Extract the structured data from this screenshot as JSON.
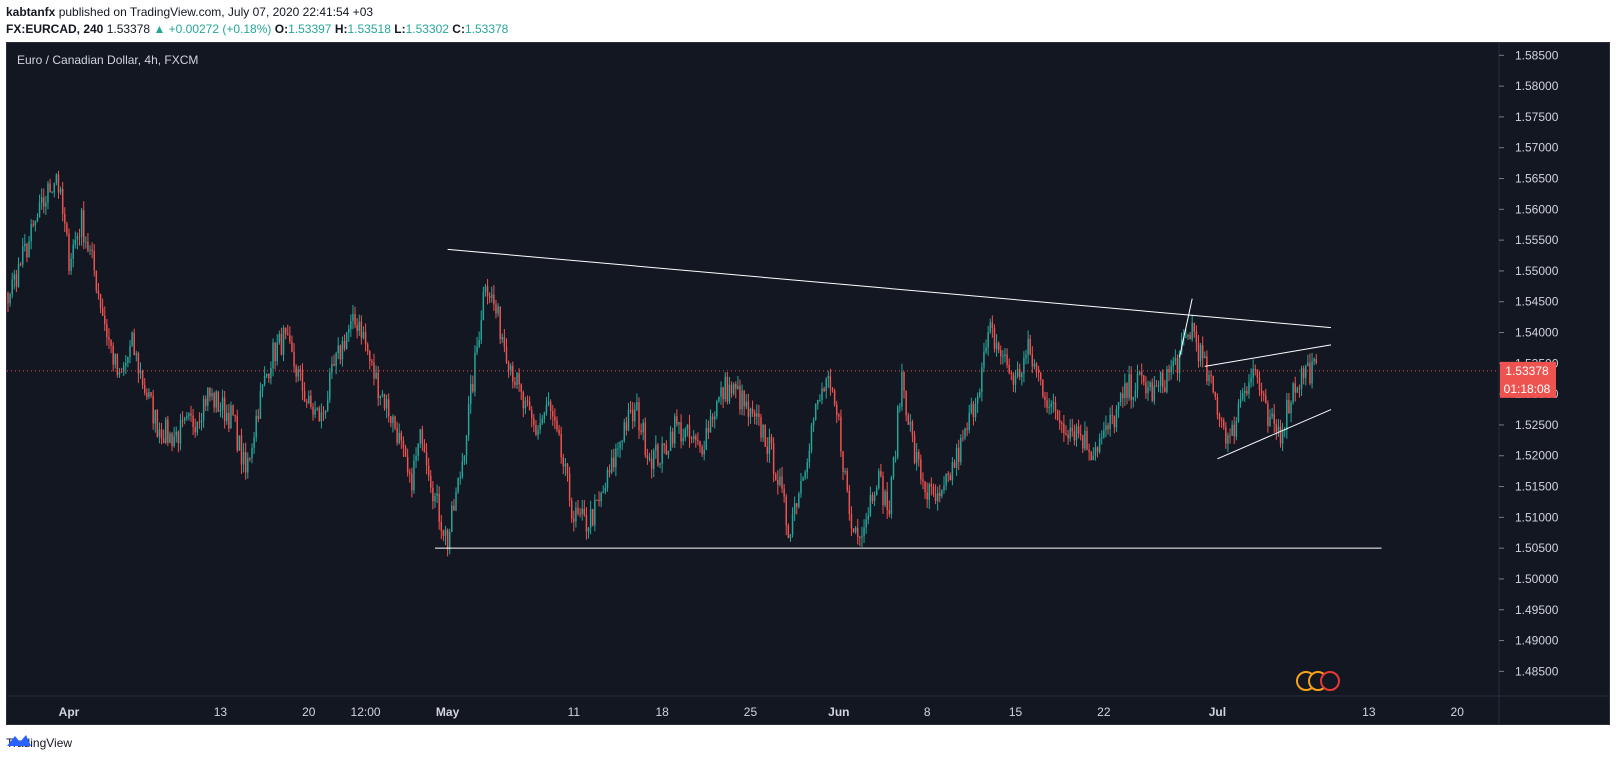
{
  "header": {
    "publisher": "kabtanfx",
    "published_text": "published on TradingView.com, July 07, 2020 22:41:54 +03",
    "symbol": "FX:EURCAD, 240",
    "last": "1.53378",
    "change": "▲ +0.00272 (+0.18%)",
    "o_label": "O:",
    "o_value": "1.53397",
    "h_label": "H:",
    "h_value": "1.53518",
    "l_label": "L:",
    "l_value": "1.53302",
    "c_label": "C:",
    "c_value": "1.53378"
  },
  "chart_title": "Euro / Canadian Dollar, 4h, FXCM",
  "footer": {
    "brand": "TradingView"
  },
  "colors": {
    "up": "#26a69a",
    "down": "#ef5350",
    "bg": "#131722",
    "grid": "#1e222d",
    "text": "#d1d4dc",
    "line": "#ffffff",
    "price_tag": "#ef5350"
  },
  "price_tag": {
    "price": "1.53378",
    "countdown": "01:18:08"
  },
  "chart_data": {
    "type": "candlestick",
    "title": "Euro / Canadian Dollar, 4h, FXCM",
    "timeframe": "4h",
    "ylim": [
      1.481,
      1.587
    ],
    "y_ticks": [
      "1.58500",
      "1.58000",
      "1.57500",
      "1.57000",
      "1.56500",
      "1.56000",
      "1.55500",
      "1.55000",
      "1.54500",
      "1.54000",
      "1.53500",
      "1.53000",
      "1.52500",
      "1.52000",
      "1.51500",
      "1.51000",
      "1.50500",
      "1.50000",
      "1.49500",
      "1.49000",
      "1.48500"
    ],
    "x_ticks": [
      {
        "label": "Apr",
        "date": "2020-04-01",
        "bold": true
      },
      {
        "label": "13",
        "date": "2020-04-13"
      },
      {
        "label": "20",
        "date": "2020-04-20"
      },
      {
        "label": "12:00",
        "date": "2020-04-24T12:00"
      },
      {
        "label": "May",
        "date": "2020-05-01",
        "bold": true
      },
      {
        "label": "11",
        "date": "2020-05-11"
      },
      {
        "label": "18",
        "date": "2020-05-18"
      },
      {
        "label": "25",
        "date": "2020-05-25"
      },
      {
        "label": "Jun",
        "date": "2020-06-01",
        "bold": true
      },
      {
        "label": "8",
        "date": "2020-06-08"
      },
      {
        "label": "15",
        "date": "2020-06-15"
      },
      {
        "label": "22",
        "date": "2020-06-22"
      },
      {
        "label": "Jul",
        "date": "2020-07-01",
        "bold": true
      },
      {
        "label": "13",
        "date": "2020-07-13"
      },
      {
        "label": "20",
        "date": "2020-07-20"
      }
    ],
    "close_path": [
      [
        "2020-03-25",
        1.536
      ],
      [
        "2020-03-27",
        1.545
      ],
      [
        "2020-03-30",
        1.561
      ],
      [
        "2020-03-31",
        1.566
      ],
      [
        "2020-04-01",
        1.552
      ],
      [
        "2020-04-02",
        1.558
      ],
      [
        "2020-04-03",
        1.55
      ],
      [
        "2020-04-04",
        1.54
      ],
      [
        "2020-04-05",
        1.532
      ],
      [
        "2020-04-06",
        1.538
      ],
      [
        "2020-04-07",
        1.531
      ],
      [
        "2020-04-08",
        1.525
      ],
      [
        "2020-04-09",
        1.523
      ],
      [
        "2020-04-10",
        1.524
      ],
      [
        "2020-04-11",
        1.526
      ],
      [
        "2020-04-12",
        1.53
      ],
      [
        "2020-04-13",
        1.528
      ],
      [
        "2020-04-14",
        1.526
      ],
      [
        "2020-04-15",
        1.517
      ],
      [
        "2020-04-16",
        1.528
      ],
      [
        "2020-04-17",
        1.536
      ],
      [
        "2020-04-18",
        1.539
      ],
      [
        "2020-04-19",
        1.534
      ],
      [
        "2020-04-20",
        1.528
      ],
      [
        "2020-04-21",
        1.526
      ],
      [
        "2020-04-22",
        1.534
      ],
      [
        "2020-04-23",
        1.54
      ],
      [
        "2020-04-24",
        1.542
      ],
      [
        "2020-04-25",
        1.534
      ],
      [
        "2020-04-26",
        1.529
      ],
      [
        "2020-04-27",
        1.524
      ],
      [
        "2020-04-28",
        1.515
      ],
      [
        "2020-04-29",
        1.524
      ],
      [
        "2020-04-30",
        1.513
      ],
      [
        "2020-05-01",
        1.506
      ],
      [
        "2020-05-02",
        1.517
      ],
      [
        "2020-05-03",
        1.532
      ],
      [
        "2020-05-04",
        1.549
      ],
      [
        "2020-05-05",
        1.542
      ],
      [
        "2020-05-06",
        1.535
      ],
      [
        "2020-05-07",
        1.528
      ],
      [
        "2020-05-08",
        1.524
      ],
      [
        "2020-05-09",
        1.528
      ],
      [
        "2020-05-10",
        1.52
      ],
      [
        "2020-05-11",
        1.51
      ],
      [
        "2020-05-12",
        1.509
      ],
      [
        "2020-05-13",
        1.512
      ],
      [
        "2020-05-14",
        1.518
      ],
      [
        "2020-05-15",
        1.525
      ],
      [
        "2020-05-16",
        1.527
      ],
      [
        "2020-05-17",
        1.52
      ],
      [
        "2020-05-18",
        1.52
      ],
      [
        "2020-05-19",
        1.525
      ],
      [
        "2020-05-20",
        1.523
      ],
      [
        "2020-05-21",
        1.521
      ],
      [
        "2020-05-22",
        1.527
      ],
      [
        "2020-05-23",
        1.531
      ],
      [
        "2020-05-24",
        1.53
      ],
      [
        "2020-05-25",
        1.526
      ],
      [
        "2020-05-26",
        1.524
      ],
      [
        "2020-05-27",
        1.518
      ],
      [
        "2020-05-28",
        1.508
      ],
      [
        "2020-05-29",
        1.516
      ],
      [
        "2020-05-30",
        1.526
      ],
      [
        "2020-05-31",
        1.532
      ],
      [
        "2020-06-01",
        1.525
      ],
      [
        "2020-06-02",
        1.508
      ],
      [
        "2020-06-03",
        1.509
      ],
      [
        "2020-06-04",
        1.517
      ],
      [
        "2020-06-05",
        1.511
      ],
      [
        "2020-06-06",
        1.533
      ],
      [
        "2020-06-07",
        1.52
      ],
      [
        "2020-06-08",
        1.514
      ],
      [
        "2020-06-09",
        1.512
      ],
      [
        "2020-06-10",
        1.518
      ],
      [
        "2020-06-11",
        1.523
      ],
      [
        "2020-06-12",
        1.531
      ],
      [
        "2020-06-13",
        1.54
      ],
      [
        "2020-06-14",
        1.536
      ],
      [
        "2020-06-15",
        1.532
      ],
      [
        "2020-06-16",
        1.537
      ],
      [
        "2020-06-17",
        1.532
      ],
      [
        "2020-06-18",
        1.527
      ],
      [
        "2020-06-19",
        1.525
      ],
      [
        "2020-06-20",
        1.524
      ],
      [
        "2020-06-21",
        1.521
      ],
      [
        "2020-06-22",
        1.523
      ],
      [
        "2020-06-23",
        1.527
      ],
      [
        "2020-06-24",
        1.531
      ],
      [
        "2020-06-25",
        1.532
      ],
      [
        "2020-06-26",
        1.53
      ],
      [
        "2020-06-27",
        1.533
      ],
      [
        "2020-06-28",
        1.536
      ],
      [
        "2020-06-29",
        1.541
      ],
      [
        "2020-06-30",
        1.534
      ],
      [
        "2020-07-01",
        1.528
      ],
      [
        "2020-07-02",
        1.522
      ],
      [
        "2020-07-03",
        1.531
      ],
      [
        "2020-07-04",
        1.534
      ],
      [
        "2020-07-05",
        1.525
      ],
      [
        "2020-07-06",
        1.524
      ],
      [
        "2020-07-07",
        1.531
      ],
      [
        "2020-07-08",
        1.534
      ],
      [
        "2020-07-09",
        1.53378
      ]
    ],
    "drawings": [
      {
        "type": "trendline",
        "from": [
          "2020-05-01",
          1.5535
        ],
        "to": [
          "2020-07-10",
          1.5408
        ]
      },
      {
        "type": "horizontal",
        "from": [
          "2020-04-30",
          1.505
        ],
        "to": [
          "2020-07-14",
          1.505
        ]
      },
      {
        "type": "trendline",
        "from": [
          "2020-07-01",
          1.5195
        ],
        "to": [
          "2020-07-10",
          1.5275
        ]
      },
      {
        "type": "trendline",
        "from": [
          "2020-06-30",
          1.5345
        ],
        "to": [
          "2020-07-10",
          1.538
        ]
      },
      {
        "type": "trendline",
        "from": [
          "2020-06-28",
          1.536
        ],
        "to": [
          "2020-06-29",
          1.5455
        ]
      }
    ],
    "grid": false,
    "legend": "top-left"
  }
}
